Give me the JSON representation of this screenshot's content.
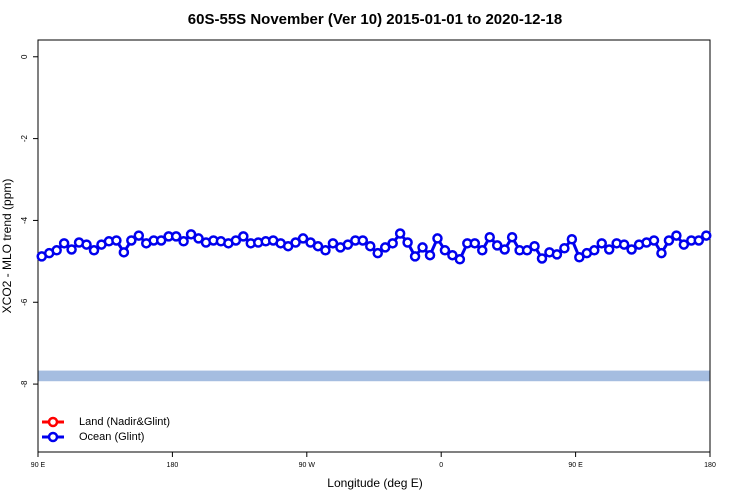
{
  "chart_data": {
    "type": "line",
    "title": "60S-55S November (Ver 10)   2015-01-01 to 2020-12-18",
    "x_label": "Longitude (deg E)",
    "y_label": "XCO2 - MLO trend (ppm)",
    "xlim": [
      90,
      540
    ],
    "xticks": [
      {
        "value": 90,
        "label": "90 E"
      },
      {
        "value": 180,
        "label": "180"
      },
      {
        "value": 270,
        "label": "90 W"
      },
      {
        "value": 360,
        "label": "0"
      },
      {
        "value": 450,
        "label": "90 E"
      },
      {
        "value": 540,
        "label": "180"
      }
    ],
    "ylim": [
      -9.66,
      0.41
    ],
    "yticks": [
      0,
      -2,
      -4,
      -6,
      -8
    ],
    "band": {
      "from": -7.67,
      "to": -7.93,
      "color": "#a5bde0"
    },
    "legend": "bottom-left",
    "x": [
      92.5,
      97.5,
      102.5,
      107.5,
      112.5,
      117.5,
      122.5,
      127.5,
      132.5,
      137.5,
      142.5,
      147.5,
      152.5,
      157.5,
      162.5,
      167.5,
      172.5,
      177.5,
      182.5,
      187.5,
      192.5,
      197.5,
      202.5,
      207.5,
      212.5,
      217.5,
      222.5,
      227.5,
      232.5,
      237.5,
      242.5,
      247.5,
      252.5,
      257.5,
      262.5,
      267.5,
      272.5,
      277.5,
      282.5,
      287.5,
      292.5,
      297.5,
      302.5,
      307.5,
      312.5,
      317.5,
      322.5,
      327.5,
      332.5,
      337.5,
      342.5,
      347.5,
      352.5,
      357.5,
      362.5,
      367.5,
      372.5,
      377.5,
      382.5,
      387.5,
      392.5,
      397.5,
      402.5,
      407.5,
      412.5,
      417.5,
      422.5,
      427.5,
      432.5,
      437.5,
      442.5,
      447.5,
      452.5,
      457.5,
      462.5,
      467.5,
      472.5,
      477.5,
      482.5,
      487.5,
      492.5,
      497.5,
      502.5,
      507.5,
      512.5,
      517.5,
      522.5,
      527.5,
      532.5,
      537.5
    ],
    "series": [
      {
        "name": "Land (Nadir&Glint)",
        "color": "#ff0000",
        "values": [
          null,
          null,
          null,
          null,
          null,
          null,
          null,
          null,
          null,
          null,
          null,
          null,
          null,
          null,
          null,
          null,
          null,
          null,
          null,
          null,
          null,
          null,
          null,
          null,
          null,
          null,
          null,
          null,
          null,
          null,
          null,
          null,
          null,
          null,
          null,
          null,
          null,
          null,
          null,
          null,
          null,
          null,
          null,
          null,
          null,
          null,
          null,
          null,
          null,
          null,
          null,
          null,
          null,
          null,
          null,
          null,
          null,
          null,
          null,
          null,
          null,
          null,
          null,
          null,
          null,
          null,
          null,
          null,
          null,
          null,
          null,
          null,
          null,
          null,
          null,
          null,
          null,
          null,
          null,
          null,
          null,
          null,
          null,
          null,
          null,
          null,
          null,
          null,
          null,
          null
        ]
      },
      {
        "name": "Ocean (Glint)",
        "color": "#0000ee",
        "values": [
          -4.88,
          -4.8,
          -4.73,
          -4.56,
          -4.71,
          -4.54,
          -4.59,
          -4.73,
          -4.59,
          -4.51,
          -4.49,
          -4.78,
          -4.49,
          -4.37,
          -4.56,
          -4.49,
          -4.49,
          -4.39,
          -4.39,
          -4.51,
          -4.34,
          -4.44,
          -4.54,
          -4.49,
          -4.51,
          -4.56,
          -4.49,
          -4.39,
          -4.56,
          -4.54,
          -4.51,
          -4.49,
          -4.56,
          -4.63,
          -4.54,
          -4.44,
          -4.54,
          -4.63,
          -4.73,
          -4.56,
          -4.66,
          -4.59,
          -4.49,
          -4.49,
          -4.63,
          -4.8,
          -4.66,
          -4.56,
          -4.32,
          -4.54,
          -4.88,
          -4.66,
          -4.85,
          -4.44,
          -4.73,
          -4.85,
          -4.95,
          -4.56,
          -4.56,
          -4.73,
          -4.41,
          -4.61,
          -4.71,
          -4.41,
          -4.73,
          -4.73,
          -4.63,
          -4.93,
          -4.78,
          -4.83,
          -4.68,
          -4.46,
          -4.9,
          -4.8,
          -4.73,
          -4.56,
          -4.71,
          -4.56,
          -4.59,
          -4.71,
          -4.59,
          -4.54,
          -4.49,
          -4.8,
          -4.49,
          -4.37,
          -4.59,
          -4.49,
          -4.49,
          -4.37
        ]
      }
    ]
  }
}
